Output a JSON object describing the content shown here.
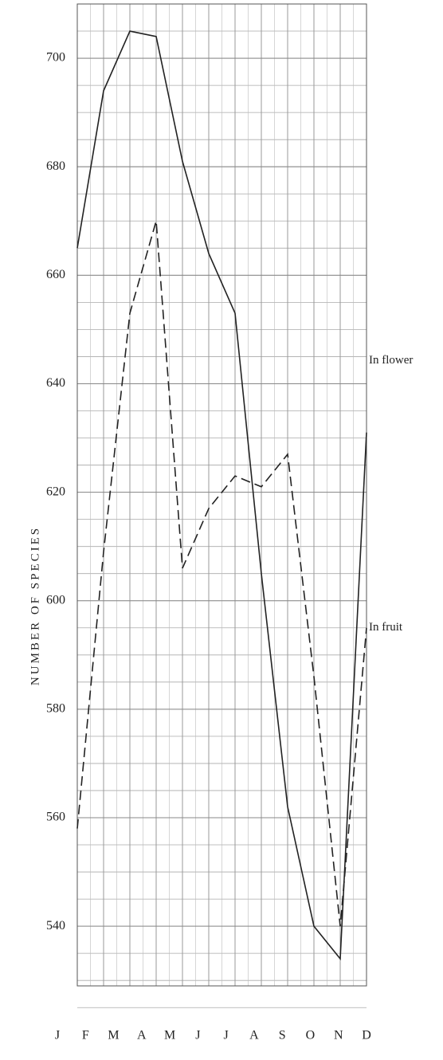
{
  "chart_data": {
    "type": "line",
    "ylabel": "NUMBER OF SPECIES",
    "categories": [
      "J",
      "F",
      "M",
      "A",
      "M",
      "J",
      "J",
      "A",
      "S",
      "O",
      "N",
      "D"
    ],
    "series": [
      {
        "name": "In flower",
        "color": "#222222",
        "dash": false,
        "values": [
          665,
          694,
          705,
          704,
          681,
          664,
          653,
          605,
          562,
          540,
          534,
          631
        ]
      },
      {
        "name": "In fruit",
        "color": "#222222",
        "dash": true,
        "values": [
          558,
          609,
          653,
          670,
          606,
          617,
          623,
          621,
          627,
          586,
          540,
          595
        ]
      }
    ],
    "ylim": [
      529,
      710
    ],
    "yticks": [
      540,
      560,
      580,
      600,
      620,
      640,
      660,
      680,
      700
    ],
    "grid": true
  }
}
